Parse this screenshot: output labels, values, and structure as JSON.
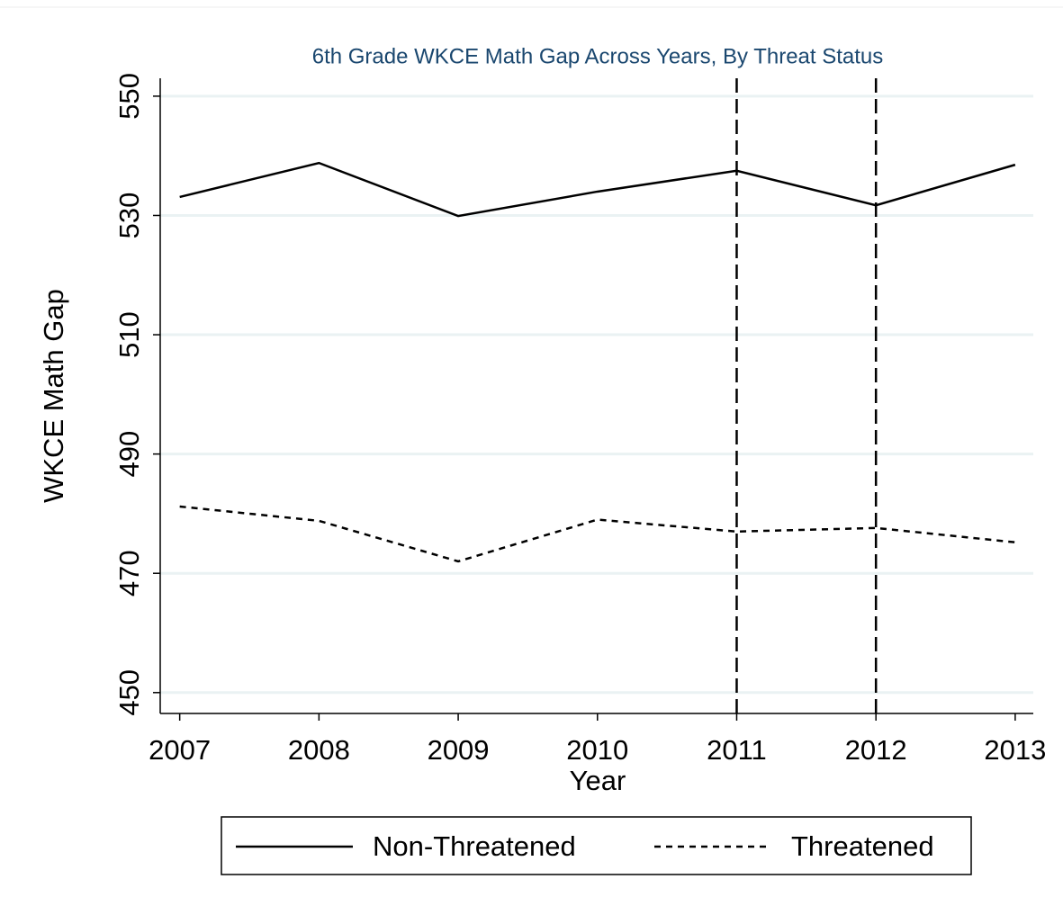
{
  "chart_data": {
    "type": "line",
    "title": "6th Grade WKCE Math Gap Across Years, By Threat Status",
    "x_label": "Year",
    "y_label": "WKCE Math Gap",
    "x": [
      2007,
      2008,
      2009,
      2010,
      2011,
      2012,
      2013
    ],
    "series": [
      {
        "name": "Non-Threatened",
        "color": "#000000",
        "line_style": "solid",
        "values": [
          533.1,
          538.8,
          529.9,
          534.0,
          537.5,
          531.7,
          538.5
        ]
      },
      {
        "name": "Threatened",
        "color": "#000000",
        "line_style": "dash",
        "values": [
          481.2,
          478.8,
          472.0,
          479.0,
          477.0,
          477.6,
          475.2
        ]
      }
    ],
    "xlines": [
      2011,
      2012
    ],
    "xlim": [
      2006.86,
      2013.13
    ],
    "ylim": [
      446.5,
      553
    ],
    "xticks": [
      2007,
      2008,
      2009,
      2010,
      2011,
      2012,
      2013
    ],
    "yticks": [
      450,
      470,
      490,
      510,
      530,
      550
    ],
    "grid": true,
    "legend": "bottom"
  }
}
